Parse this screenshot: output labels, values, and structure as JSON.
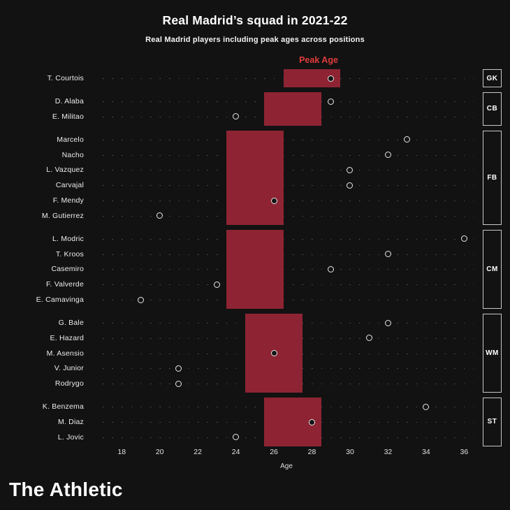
{
  "footer": {
    "logo_text": "The Athletic"
  },
  "chart_data": {
    "type": "scatter",
    "title": "Real Madrid’s squad in 2021-22",
    "subtitle": "Real Madrid players including peak ages across positions",
    "xlabel": "Age",
    "xlim": [
      17,
      36.5
    ],
    "xticks": [
      18,
      20,
      22,
      24,
      26,
      28,
      30,
      32,
      34,
      36
    ],
    "grid": "dotted-rows",
    "legend_position": "none",
    "annotations": {
      "peak_age_label": "Peak Age"
    },
    "groups": [
      {
        "position": "GK",
        "peak_range": [
          26.5,
          29.5
        ],
        "players": [
          {
            "name": "T. Courtois",
            "age": 29
          }
        ]
      },
      {
        "position": "CB",
        "peak_range": [
          25.5,
          28.5
        ],
        "players": [
          {
            "name": "D. Alaba",
            "age": 29
          },
          {
            "name": "E. Militao",
            "age": 24
          }
        ]
      },
      {
        "position": "FB",
        "peak_range": [
          23.5,
          26.5
        ],
        "players": [
          {
            "name": "Marcelo",
            "age": 33
          },
          {
            "name": "Nacho",
            "age": 32
          },
          {
            "name": "L. Vazquez",
            "age": 30
          },
          {
            "name": "Carvajal",
            "age": 30
          },
          {
            "name": "F. Mendy",
            "age": 26
          },
          {
            "name": "M. Gutierrez",
            "age": 20
          }
        ]
      },
      {
        "position": "CM",
        "peak_range": [
          23.5,
          26.5
        ],
        "players": [
          {
            "name": "L. Modric",
            "age": 36
          },
          {
            "name": "T. Kroos",
            "age": 32
          },
          {
            "name": "Casemiro",
            "age": 29
          },
          {
            "name": "F. Valverde",
            "age": 23
          },
          {
            "name": "E. Camavinga",
            "age": 19
          }
        ]
      },
      {
        "position": "WM",
        "peak_range": [
          24.5,
          27.5
        ],
        "players": [
          {
            "name": "G. Bale",
            "age": 32
          },
          {
            "name": "E. Hazard",
            "age": 31
          },
          {
            "name": "M. Asensio",
            "age": 26
          },
          {
            "name": "V. Junior",
            "age": 21
          },
          {
            "name": "Rodrygo",
            "age": 21
          }
        ]
      },
      {
        "position": "ST",
        "peak_range": [
          25.5,
          28.5
        ],
        "players": [
          {
            "name": "K. Benzema",
            "age": 34
          },
          {
            "name": "M. Diaz",
            "age": 28
          },
          {
            "name": "L. Jovic",
            "age": 24
          }
        ]
      }
    ],
    "colors": {
      "background": "#121212",
      "band": "#8e2433",
      "peak_label": "#e03c3c",
      "dot_ring": "#e8e8e8",
      "dot_fill": "#141414",
      "text": "#ffffff"
    }
  }
}
